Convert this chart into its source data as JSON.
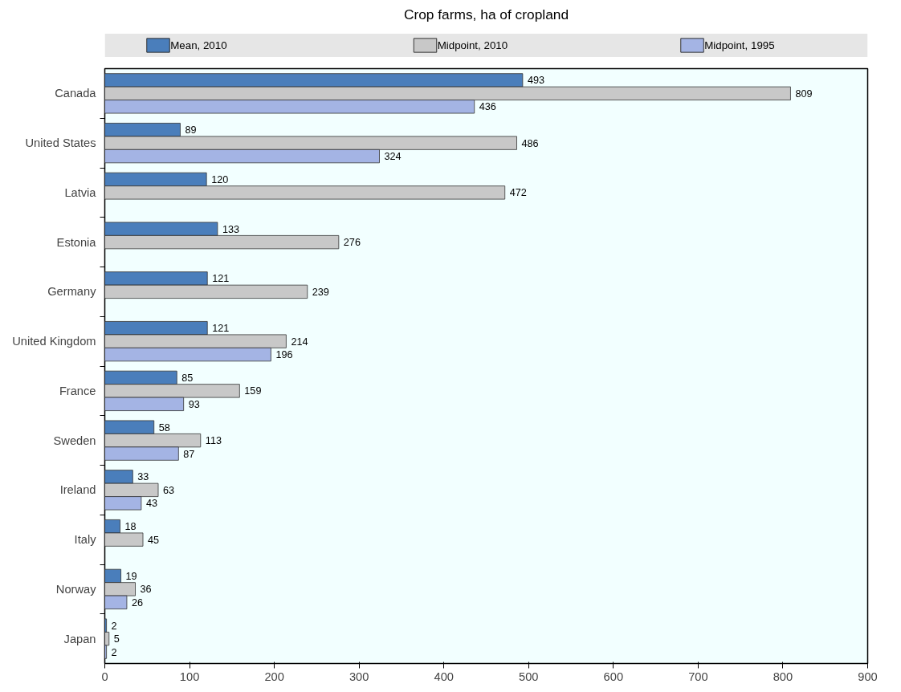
{
  "chart_data": {
    "type": "bar",
    "orientation": "horizontal",
    "title": "Crop farms, ha of cropland",
    "categories": [
      "Canada",
      "United States",
      "Latvia",
      "Estonia",
      "Germany",
      "United Kingdom",
      "France",
      "Sweden",
      "Ireland",
      "Italy",
      "Norway",
      "Japan"
    ],
    "series": [
      {
        "name": "Mean, 2010",
        "color": "#4a7ebb",
        "values": [
          493,
          89,
          120,
          133,
          121,
          121,
          85,
          58,
          33,
          18,
          19,
          2
        ]
      },
      {
        "name": "Midpoint, 2010",
        "color": "#c8c8c8",
        "values": [
          809,
          486,
          472,
          276,
          239,
          214,
          159,
          113,
          63,
          45,
          36,
          5
        ]
      },
      {
        "name": "Midpoint, 1995",
        "color": "#a4b4e4",
        "values": [
          436,
          324,
          null,
          null,
          null,
          196,
          93,
          87,
          43,
          null,
          26,
          2
        ]
      }
    ],
    "xlim": [
      0,
      900
    ],
    "xticks": [
      0,
      100,
      200,
      300,
      400,
      500,
      600,
      700,
      800,
      900
    ],
    "grid": false,
    "legend": "top",
    "data_labels": true
  }
}
